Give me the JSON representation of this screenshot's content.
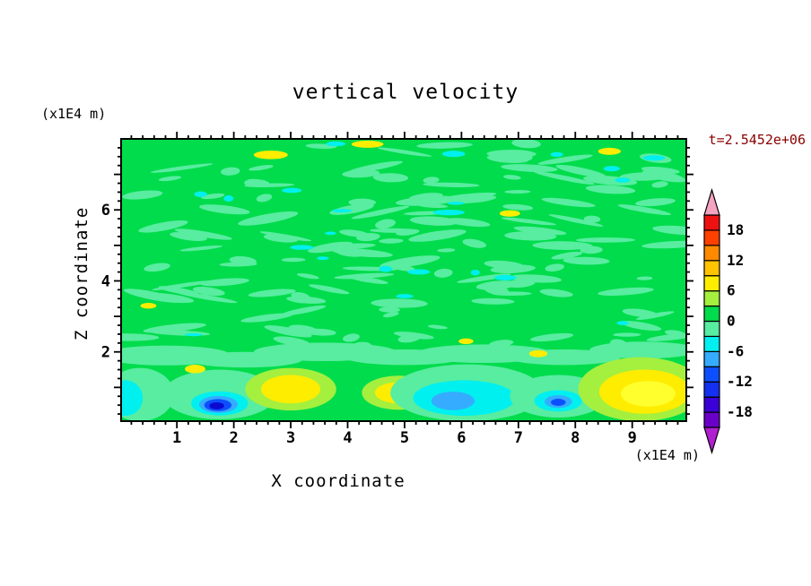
{
  "chart_data": {
    "type": "filled_contour",
    "title": "vertical velocity",
    "timestamp": "t=2.5452e+06",
    "timestamp_color": "#8b0000",
    "xlabel": "X coordinate",
    "x_unit": "(x1E4 m)",
    "ylabel": "Z coordinate",
    "y_unit": "(x1E4 m)",
    "xlim": [
      0.02,
      9.95
    ],
    "zlim": [
      0.05,
      8.0
    ],
    "x_major_ticks": [
      1,
      2,
      3,
      4,
      5,
      6,
      7,
      8,
      9
    ],
    "x_minor_step": 0.2,
    "z_major_ticks": [
      1,
      2,
      3,
      4,
      5,
      6,
      7
    ],
    "z_labeled_ticks": [
      2,
      4,
      6
    ],
    "z_minor_step": 0.25,
    "contour_interval": 3,
    "field_background_value": "0 to 3",
    "palette": {
      "green": "#00dc4b",
      "mint": "#58eda0",
      "cyan": "#00f0f0",
      "sky": "#35acff",
      "blue": "#0d4fff",
      "darkblue": "#0a0ad0",
      "ygreen": "#a5ef3f",
      "yellow": "#ffed00",
      "yellow2": "#ffff2e"
    },
    "colorbar": {
      "min": -21,
      "max": 21,
      "step": 3,
      "below_color": "#b01fd0",
      "above_color": "#f4a4c0",
      "segments": [
        {
          "from": -21,
          "to": -18,
          "color": "#6a00c8"
        },
        {
          "from": -18,
          "to": -15,
          "color": "#3a00d8"
        },
        {
          "from": -15,
          "to": -12,
          "color": "#1430f0"
        },
        {
          "from": -12,
          "to": -9,
          "color": "#0d4fff"
        },
        {
          "from": -9,
          "to": -6,
          "color": "#35acff"
        },
        {
          "from": -6,
          "to": -3,
          "color": "#00f0f0"
        },
        {
          "from": -3,
          "to": 0,
          "color": "#58eda0"
        },
        {
          "from": 0,
          "to": 3,
          "color": "#00dc4b"
        },
        {
          "from": 3,
          "to": 6,
          "color": "#a5ef3f"
        },
        {
          "from": 6,
          "to": 9,
          "color": "#ffed00"
        },
        {
          "from": 9,
          "to": 12,
          "color": "#ffc300"
        },
        {
          "from": 12,
          "to": 15,
          "color": "#ff8a00"
        },
        {
          "from": 15,
          "to": 18,
          "color": "#ff4000"
        },
        {
          "from": 18,
          "to": 21,
          "color": "#ee1111"
        }
      ],
      "labels": [
        {
          "value": "18",
          "boundary": 13
        },
        {
          "value": "12",
          "boundary": 11
        },
        {
          "value": "6",
          "boundary": 9
        },
        {
          "value": "0",
          "boundary": 7
        },
        {
          "value": "-6",
          "boundary": 5
        },
        {
          "value": "-12",
          "boundary": 3
        },
        {
          "value": "-18",
          "boundary": 1
        }
      ]
    },
    "texture": {
      "seed": 7,
      "mint_count": 150,
      "cyan_count": 22,
      "z_min": 2.05,
      "z_max": 7.9
    },
    "features": [
      {
        "x": 0.8,
        "z": 1.9,
        "rx": 1.15,
        "rz": 0.28,
        "v": -1.5,
        "c": "mint"
      },
      {
        "x": 2.2,
        "z": 1.78,
        "rx": 1.0,
        "rz": 0.22,
        "v": -1.5,
        "c": "mint"
      },
      {
        "x": 3.6,
        "z": 2.0,
        "rx": 1.25,
        "rz": 0.26,
        "v": -1.5,
        "c": "mint"
      },
      {
        "x": 5.0,
        "z": 1.85,
        "rx": 1.05,
        "rz": 0.22,
        "v": -1.5,
        "c": "mint"
      },
      {
        "x": 6.4,
        "z": 1.95,
        "rx": 1.2,
        "rz": 0.26,
        "v": -1.5,
        "c": "mint"
      },
      {
        "x": 7.8,
        "z": 1.85,
        "rx": 1.0,
        "rz": 0.22,
        "v": -1.5,
        "c": "mint"
      },
      {
        "x": 9.2,
        "z": 2.05,
        "rx": 0.95,
        "rz": 0.24,
        "v": -1.5,
        "c": "mint"
      },
      {
        "x": 0.35,
        "z": 0.8,
        "rx": 0.6,
        "rz": 0.75,
        "v": -1.5,
        "c": "mint"
      },
      {
        "x": 0.1,
        "z": 0.7,
        "rx": 0.3,
        "rz": 0.5,
        "v": -4.5,
        "c": "cyan"
      },
      {
        "x": 1.75,
        "z": 0.8,
        "rx": 1.0,
        "rz": 0.7,
        "v": -1.5,
        "c": "mint"
      },
      {
        "x": 1.75,
        "z": 0.55,
        "rx": 0.5,
        "rz": 0.34,
        "v": -4.5,
        "c": "cyan"
      },
      {
        "x": 1.73,
        "z": 0.52,
        "rx": 0.34,
        "rz": 0.24,
        "v": -7.5,
        "c": "sky"
      },
      {
        "x": 1.72,
        "z": 0.5,
        "rx": 0.24,
        "rz": 0.17,
        "v": -10.5,
        "c": "blue"
      },
      {
        "x": 1.7,
        "z": 0.48,
        "rx": 0.13,
        "rz": 0.1,
        "v": -13.5,
        "c": "darkblue"
      },
      {
        "x": 1.32,
        "z": 1.52,
        "rx": 0.18,
        "rz": 0.12,
        "v": 7.5,
        "c": "yellow"
      },
      {
        "x": 3.0,
        "z": 0.95,
        "rx": 0.8,
        "rz": 0.6,
        "v": 4.5,
        "c": "ygreen"
      },
      {
        "x": 3.0,
        "z": 0.95,
        "rx": 0.52,
        "rz": 0.4,
        "v": 7.5,
        "c": "yellow"
      },
      {
        "x": 4.9,
        "z": 0.85,
        "rx": 0.65,
        "rz": 0.48,
        "v": 4.5,
        "c": "ygreen"
      },
      {
        "x": 4.9,
        "z": 0.85,
        "rx": 0.42,
        "rz": 0.3,
        "v": 7.5,
        "c": "yellow"
      },
      {
        "x": 6.1,
        "z": 0.85,
        "rx": 1.35,
        "rz": 0.8,
        "v": -1.5,
        "c": "mint"
      },
      {
        "x": 6.05,
        "z": 0.7,
        "rx": 0.9,
        "rz": 0.5,
        "v": -4.5,
        "c": "cyan"
      },
      {
        "x": 5.85,
        "z": 0.62,
        "rx": 0.38,
        "rz": 0.26,
        "v": -7.5,
        "c": "sky"
      },
      {
        "x": 7.7,
        "z": 0.75,
        "rx": 0.85,
        "rz": 0.6,
        "v": -1.5,
        "c": "mint"
      },
      {
        "x": 7.7,
        "z": 0.62,
        "rx": 0.42,
        "rz": 0.3,
        "v": -4.5,
        "c": "cyan"
      },
      {
        "x": 7.7,
        "z": 0.6,
        "rx": 0.24,
        "rz": 0.18,
        "v": -7.5,
        "c": "sky"
      },
      {
        "x": 7.7,
        "z": 0.58,
        "rx": 0.13,
        "rz": 0.1,
        "v": -10.5,
        "c": "blue"
      },
      {
        "x": 9.15,
        "z": 0.95,
        "rx": 1.1,
        "rz": 0.9,
        "v": 4.5,
        "c": "ygreen"
      },
      {
        "x": 9.22,
        "z": 0.88,
        "rx": 0.8,
        "rz": 0.62,
        "v": 7.5,
        "c": "yellow"
      },
      {
        "x": 9.28,
        "z": 0.82,
        "rx": 0.48,
        "rz": 0.36,
        "v": 8.0,
        "c": "yellow2"
      },
      {
        "x": 7.35,
        "z": 1.95,
        "rx": 0.16,
        "rz": 0.1,
        "v": 7.5,
        "c": "yellow"
      },
      {
        "x": 6.08,
        "z": 2.3,
        "rx": 0.13,
        "rz": 0.08,
        "v": 7.5,
        "c": "yellow"
      },
      {
        "x": 2.65,
        "z": 7.55,
        "rx": 0.3,
        "rz": 0.12,
        "v": 7.5,
        "c": "yellow"
      },
      {
        "x": 4.35,
        "z": 7.85,
        "rx": 0.28,
        "rz": 0.1,
        "v": 7.5,
        "c": "yellow"
      },
      {
        "x": 8.6,
        "z": 7.65,
        "rx": 0.2,
        "rz": 0.1,
        "v": 7.5,
        "c": "yellow"
      },
      {
        "x": 6.85,
        "z": 5.9,
        "rx": 0.18,
        "rz": 0.09,
        "v": 7.5,
        "c": "yellow"
      },
      {
        "x": 0.5,
        "z": 3.3,
        "rx": 0.14,
        "rz": 0.08,
        "v": 7.5,
        "c": "yellow"
      }
    ]
  }
}
